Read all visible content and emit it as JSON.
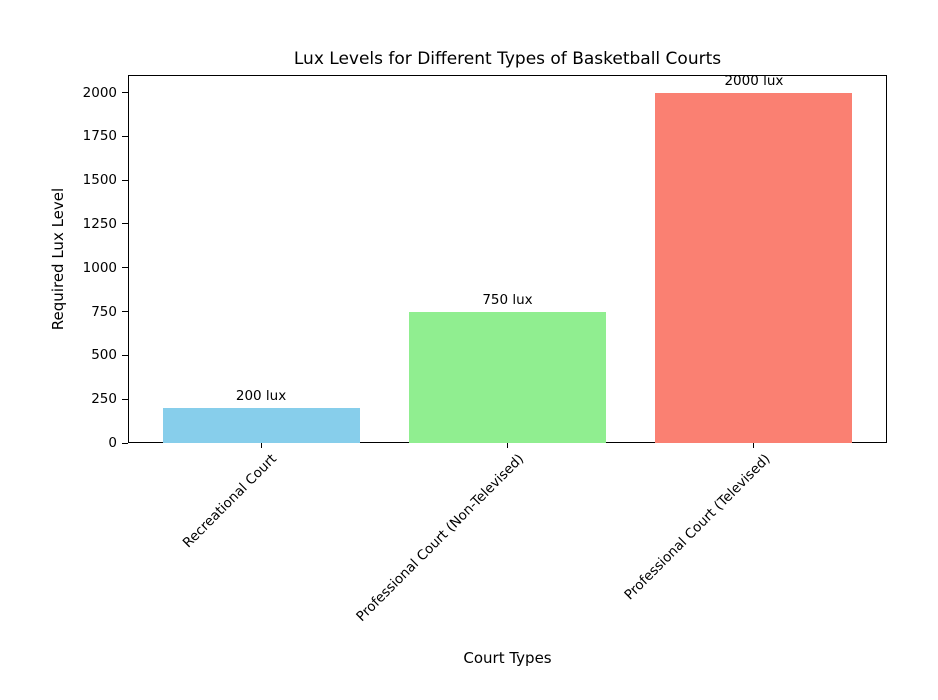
{
  "chart_data": {
    "type": "bar",
    "title": "Lux Levels for Different Types of Basketball Courts",
    "xlabel": "Court Types",
    "ylabel": "Required Lux Level",
    "categories": [
      "Recreational Court",
      "Professional Court (Non-Televised)",
      "Professional Court (Televised)"
    ],
    "values": [
      200,
      750,
      2000
    ],
    "bar_labels": [
      "200 lux",
      "750 lux",
      "2000 lux"
    ],
    "bar_colors": [
      "#87CEEB",
      "#90EE90",
      "#FA8072"
    ],
    "yticks": [
      0,
      250,
      500,
      750,
      1000,
      1250,
      1500,
      1750,
      2000
    ],
    "ylim": [
      0,
      2100
    ],
    "grid": false,
    "legend": null,
    "background_color": "#ffffff",
    "text_color": "#000000"
  }
}
